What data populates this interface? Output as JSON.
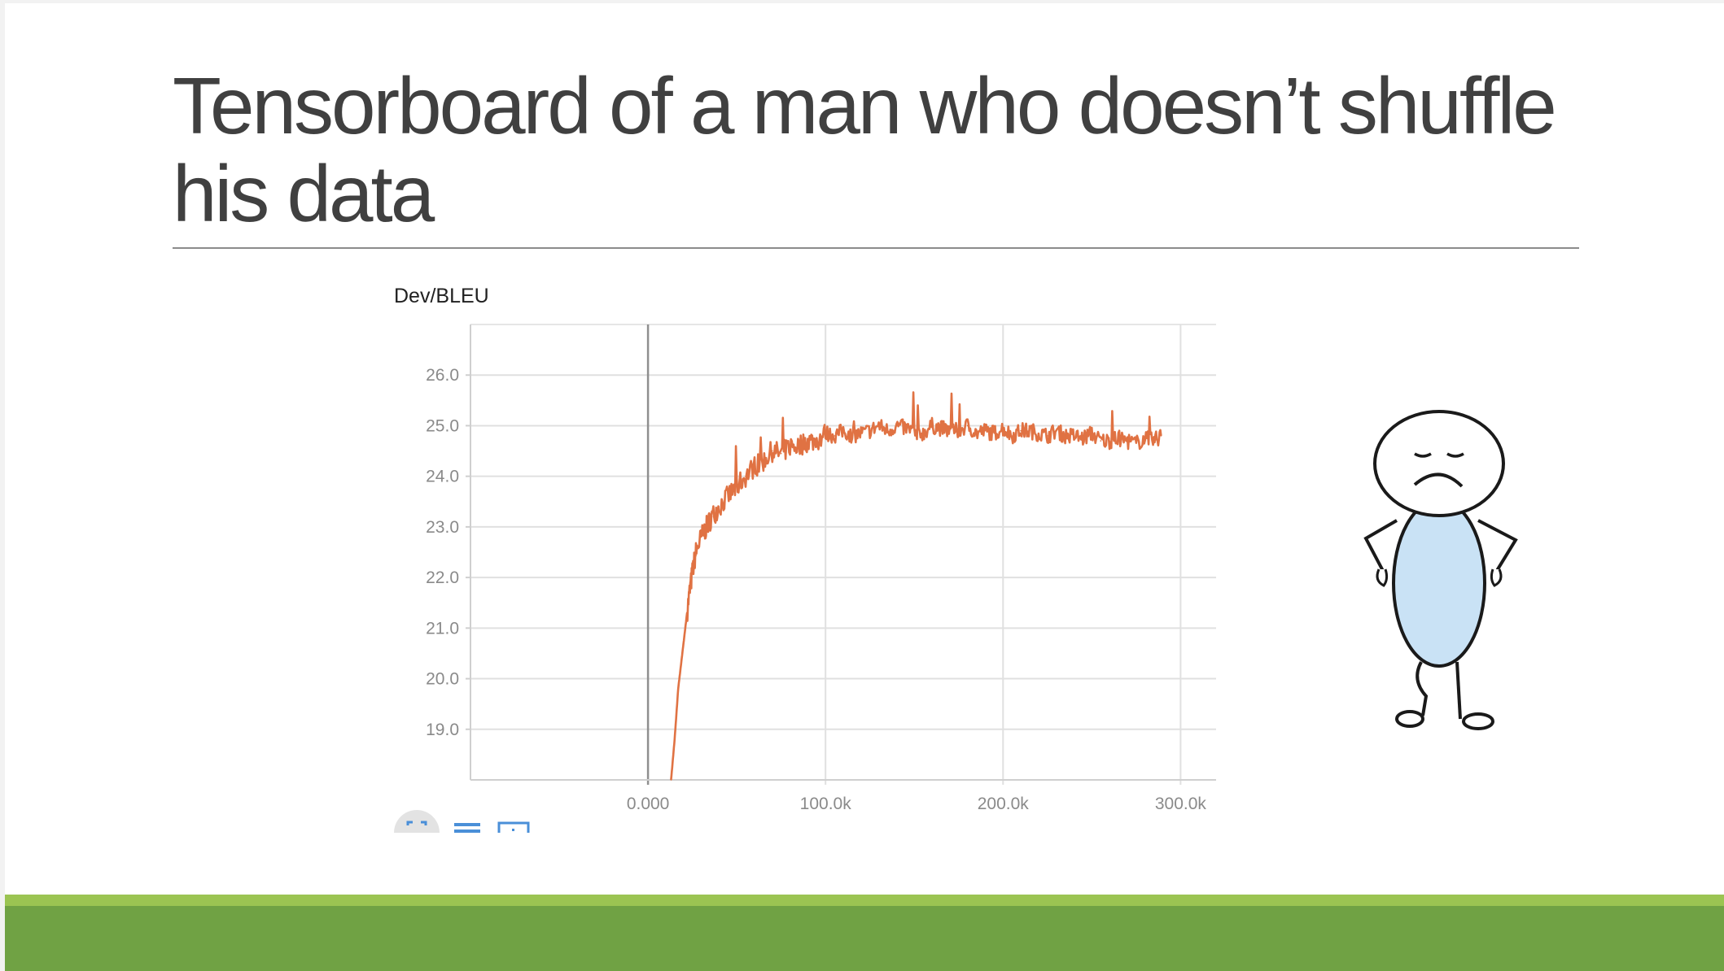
{
  "slide": {
    "title": "Tensorboard of a man who doesn’t shuffle his data"
  },
  "toolbar": {
    "icons": [
      "fit-domain-icon",
      "list-icon",
      "zoom-region-icon"
    ]
  },
  "colors": {
    "series": "#e07243",
    "band_light": "#9bc452",
    "band_dark": "#70a244",
    "figure_body": "#c9e2f5"
  },
  "chart_data": {
    "type": "line",
    "title": "Dev/BLEU",
    "xlabel": "",
    "ylabel": "",
    "xlim": [
      -100000,
      320000
    ],
    "ylim": [
      18.0,
      27.0
    ],
    "x_ticks": [
      0,
      100000,
      200000,
      300000
    ],
    "x_tick_labels": [
      "0.000",
      "100.0k",
      "200.0k",
      "300.0k"
    ],
    "y_ticks": [
      19,
      20,
      21,
      22,
      23,
      24,
      25,
      26
    ],
    "y_tick_labels": [
      "19.0",
      "20.0",
      "21.0",
      "22.0",
      "23.0",
      "24.0",
      "25.0",
      "26.0"
    ],
    "grid": true,
    "legend": "none",
    "series": [
      {
        "x": [
          13000,
          15000,
          17000,
          19000,
          21000,
          23000,
          25000,
          27000,
          30000,
          33000,
          36000,
          40000,
          45000,
          50000,
          55000,
          60000,
          65000,
          70000,
          75000,
          80000,
          85000,
          90000,
          95000,
          100000,
          105000,
          110000,
          115000,
          120000,
          125000,
          130000,
          135000,
          140000,
          145000,
          150000,
          155000,
          160000,
          165000,
          170000,
          175000,
          180000,
          185000,
          190000,
          195000,
          200000,
          205000,
          210000,
          215000,
          220000,
          225000,
          230000,
          235000,
          240000,
          245000,
          250000,
          255000,
          260000,
          265000,
          270000,
          275000,
          280000,
          285000,
          289000
        ],
        "y": [
          18.0,
          18.8,
          19.8,
          20.4,
          21.0,
          21.6,
          22.1,
          22.5,
          22.8,
          23.0,
          23.2,
          23.4,
          23.6,
          23.8,
          24.0,
          24.2,
          24.3,
          24.5,
          24.45,
          24.6,
          24.6,
          24.7,
          24.7,
          24.85,
          24.8,
          24.9,
          24.8,
          24.85,
          24.9,
          25.0,
          24.9,
          25.0,
          24.95,
          24.9,
          24.85,
          25.0,
          24.95,
          24.9,
          24.9,
          25.0,
          24.85,
          24.9,
          24.85,
          24.95,
          24.8,
          24.9,
          24.9,
          24.85,
          24.8,
          24.9,
          24.8,
          24.8,
          24.75,
          24.85,
          24.7,
          24.7,
          24.75,
          24.7,
          24.65,
          24.75,
          24.7,
          24.8
        ]
      }
    ]
  }
}
